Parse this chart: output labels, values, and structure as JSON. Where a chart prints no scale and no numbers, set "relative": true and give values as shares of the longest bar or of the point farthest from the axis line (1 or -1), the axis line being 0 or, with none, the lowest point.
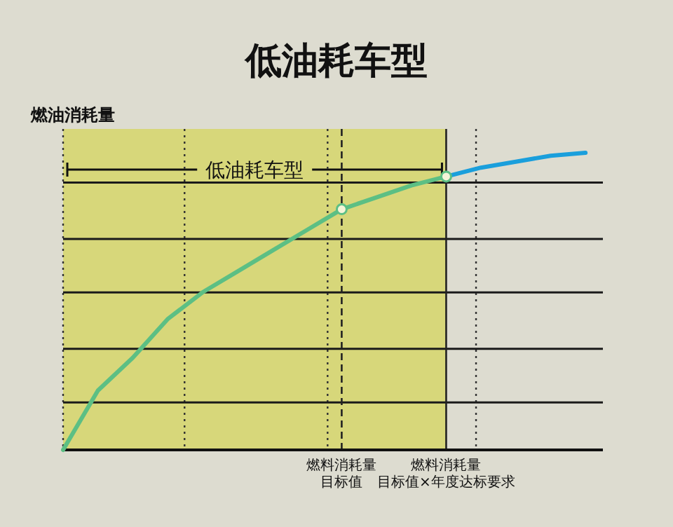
{
  "chart_data": {
    "type": "line",
    "title": "低油耗车型",
    "ylabel": "燃油消耗量",
    "relative": true,
    "categories": [
      null,
      null,
      null,
      null,
      null,
      null,
      null,
      null,
      null,
      null,
      null,
      null,
      null,
      null,
      null,
      null
    ],
    "series": [
      {
        "color": "#5cbf84",
        "values": [
          0,
          0.2,
          0.31,
          0.44,
          0.53,
          0.6,
          0.67,
          0.74,
          0.81,
          0.85,
          0.89,
          0.92,
          null,
          null,
          null,
          null
        ]
      },
      {
        "color": "#1a9fdc",
        "values": [
          null,
          null,
          null,
          null,
          null,
          null,
          null,
          null,
          null,
          null,
          null,
          0.92,
          0.95,
          0.97,
          0.99,
          1.0
        ]
      }
    ],
    "annotations": [
      "低油耗车型",
      "燃料消耗量目标值",
      "燃料消耗量目标值×年度达标要求"
    ],
    "ref_lines": [
      {
        "axis": "y",
        "value": 0.16,
        "color": "#1a1a1a"
      },
      {
        "axis": "y",
        "value": 0.34,
        "color": "#1a1a1a"
      },
      {
        "axis": "y",
        "value": 0.53,
        "color": "#1a1a1a"
      },
      {
        "axis": "y",
        "value": 0.71,
        "color": "#1a1a1a"
      },
      {
        "axis": "y",
        "value": 0.9,
        "color": "#1a1a1a"
      }
    ]
  }
}
